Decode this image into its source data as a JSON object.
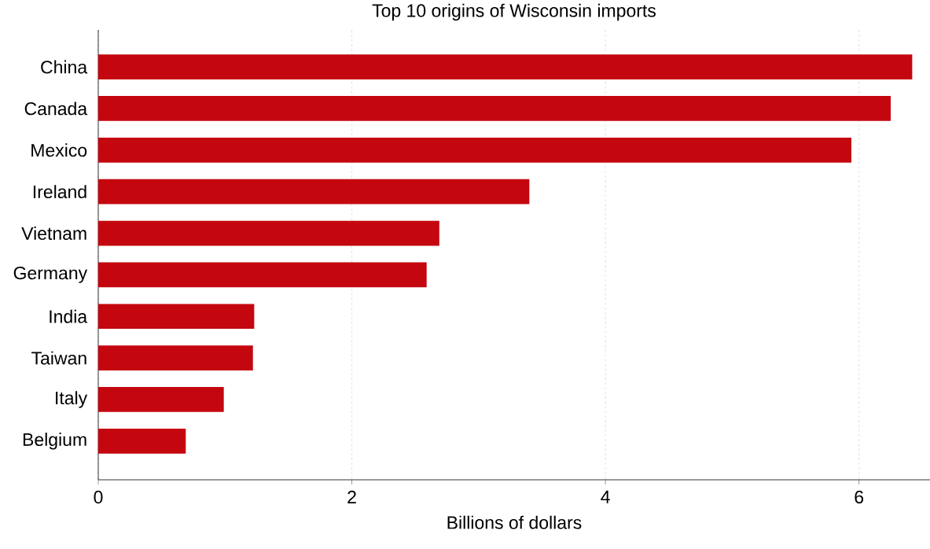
{
  "chart_data": {
    "type": "bar",
    "orientation": "horizontal",
    "title": "Top 10 origins of Wisconsin imports",
    "xlabel": "Billions of dollars",
    "categories": [
      "China",
      "Canada",
      "Mexico",
      "Ireland",
      "Vietnam",
      "Germany",
      "India",
      "Taiwan",
      "Italy",
      "Belgium"
    ],
    "values": [
      6.42,
      6.25,
      5.94,
      3.4,
      2.69,
      2.59,
      1.23,
      1.22,
      0.99,
      0.69
    ],
    "color": "#c4070f",
    "xlim": [
      0,
      6.56
    ],
    "xticks": [
      0,
      2,
      4,
      6
    ],
    "grid": "x"
  }
}
